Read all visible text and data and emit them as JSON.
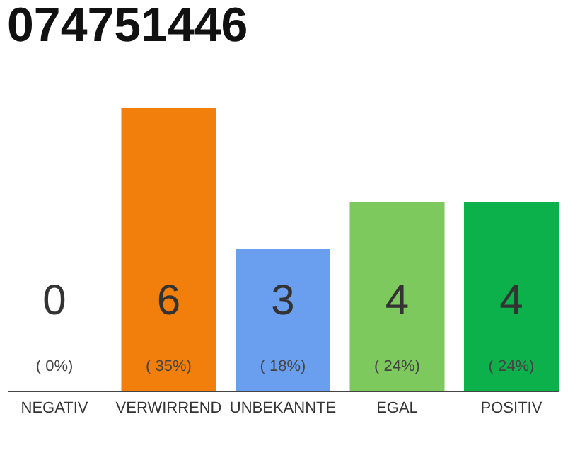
{
  "chart_data": {
    "type": "bar",
    "title": "074751446",
    "categories": [
      "NEGATIV",
      "VERWIRREND",
      "UNBEKANNTE",
      "EGAL",
      "POSITIV"
    ],
    "values": [
      0,
      6,
      3,
      4,
      4
    ],
    "colors": [
      "#bdbdbd",
      "#f27f0c",
      "#6a9ff0",
      "#7dc95e",
      "#0db14b"
    ],
    "ylim": [
      0,
      6
    ],
    "tick_labels": "x",
    "data_labels": true,
    "grid": false,
    "annotations": [
      {
        "text": "( 0%)",
        "x": "NEGATIV",
        "y": 0
      },
      {
        "text": "( 35%)",
        "x": "VERWIRREND",
        "y": 0
      },
      {
        "text": "( 18%)",
        "x": "UNBEKANNTE",
        "y": 0
      },
      {
        "text": "( 24%)",
        "x": "EGAL",
        "y": 0
      },
      {
        "text": "( 24%)",
        "x": "POSITIV",
        "y": 0
      }
    ]
  }
}
